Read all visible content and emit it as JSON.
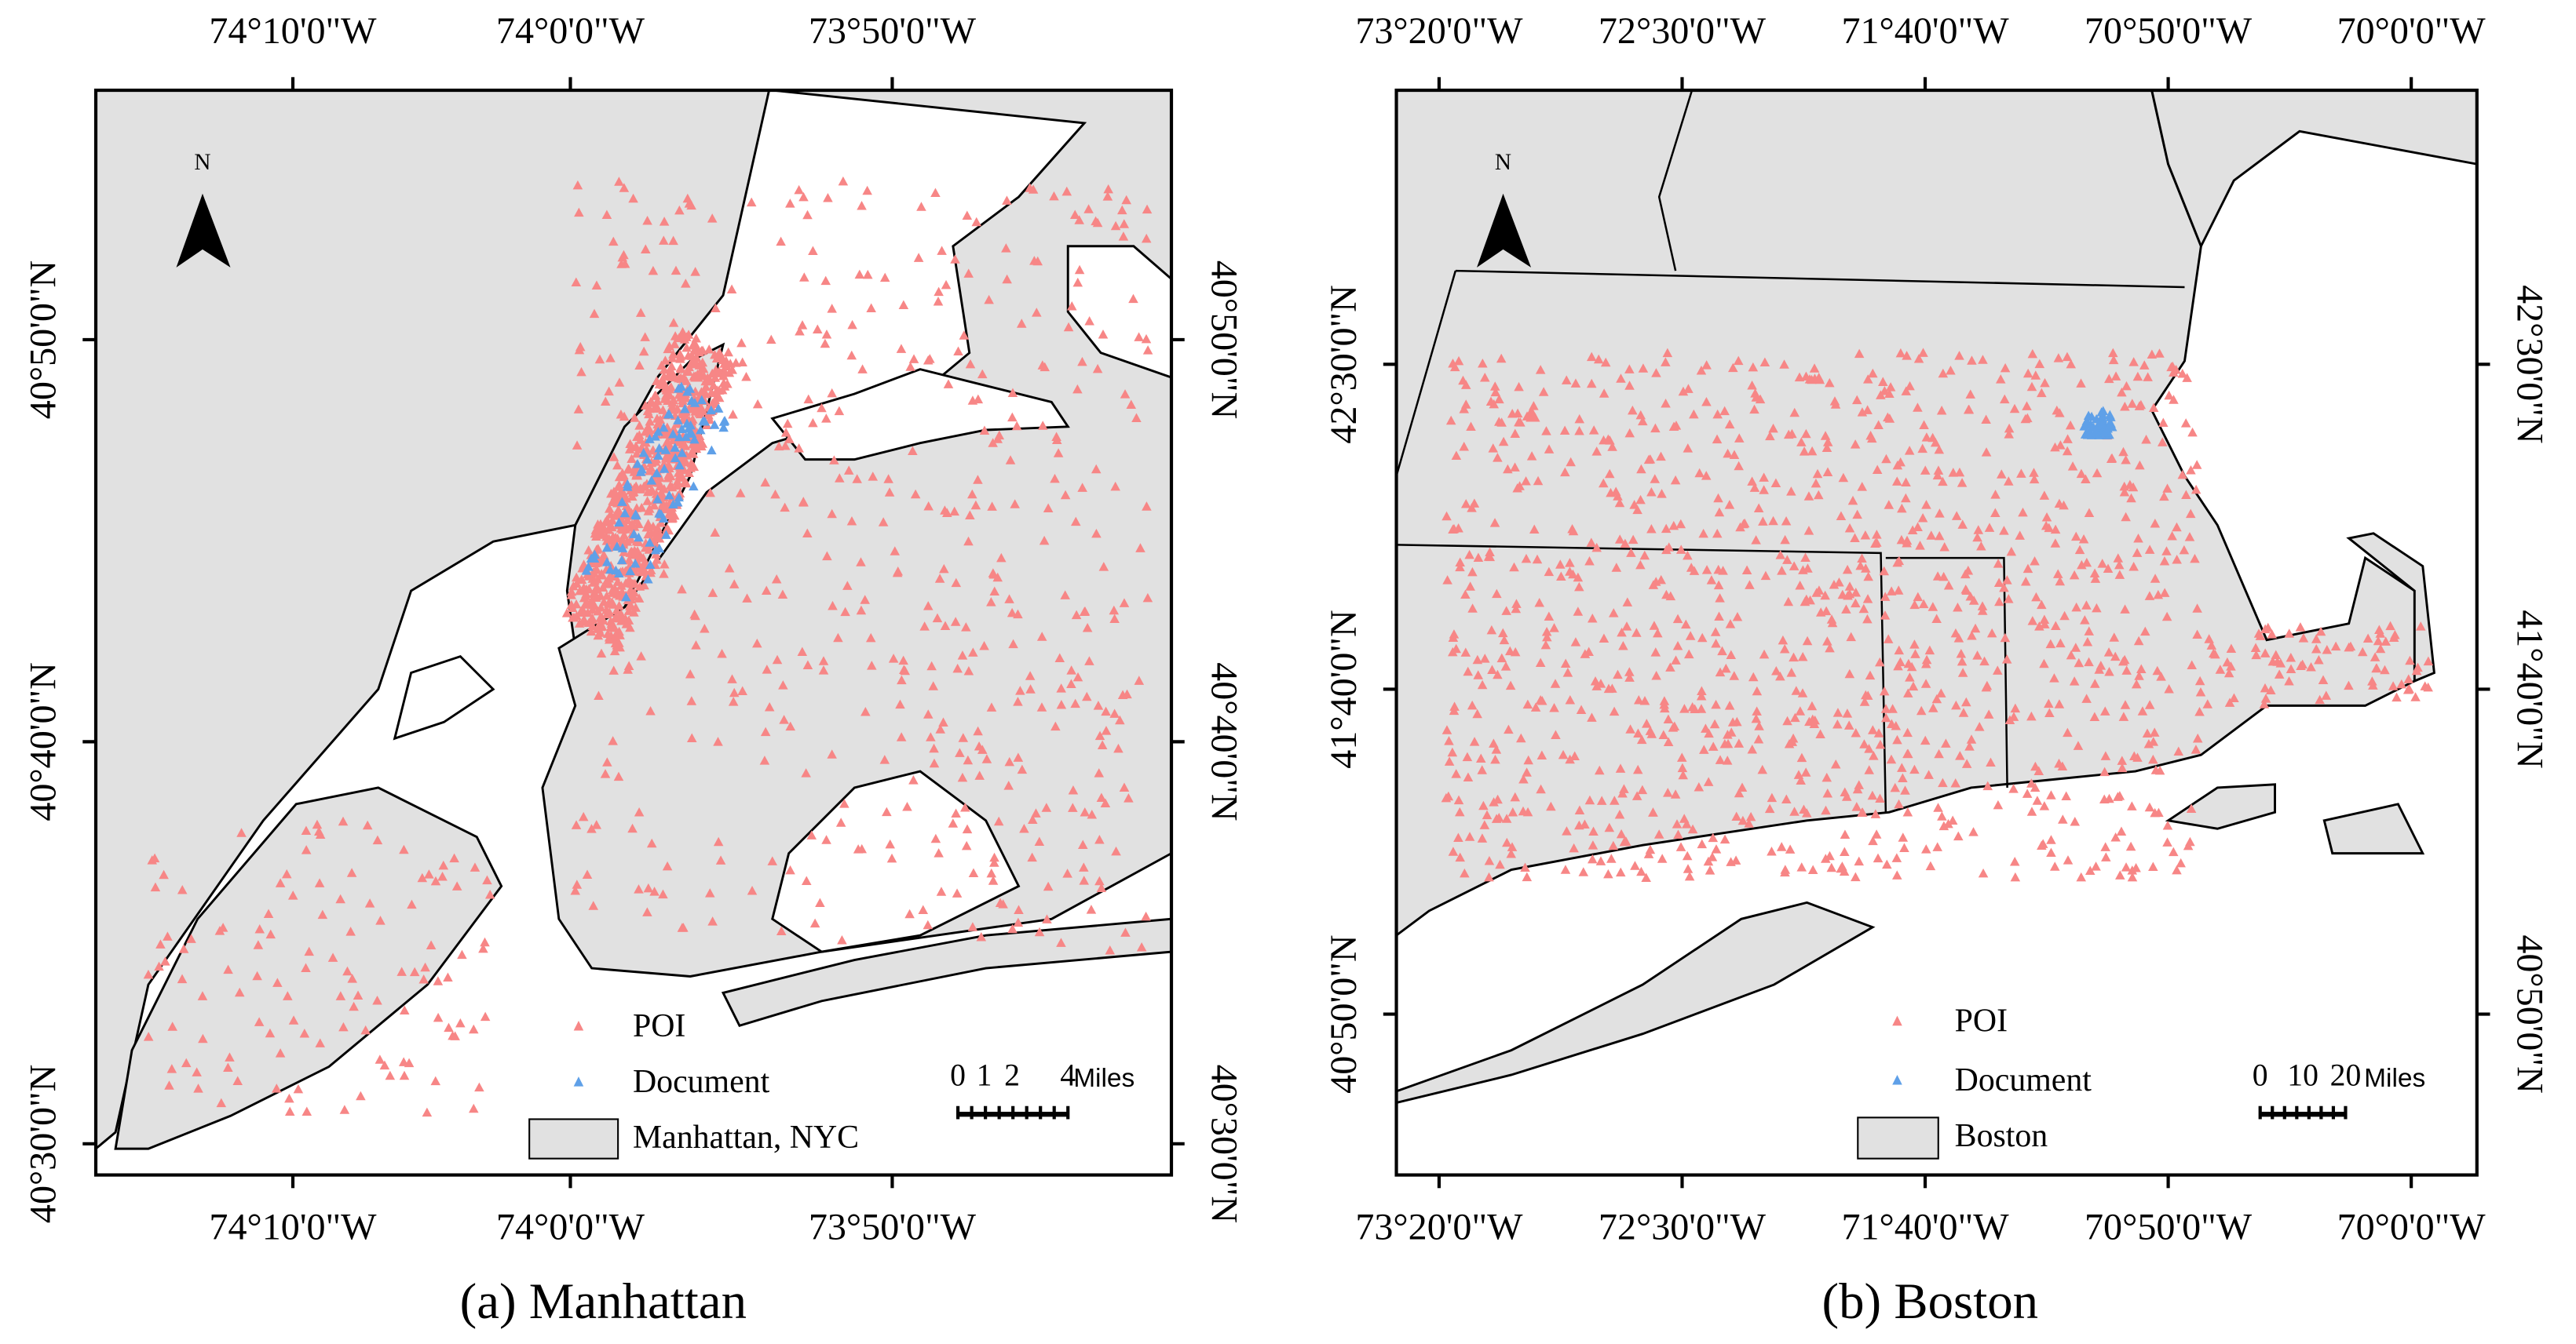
{
  "panels": [
    {
      "caption": "(a) Manhattan",
      "x_ticks": [
        "74°10'0\"W",
        "74°0'0\"W",
        "73°50'0\"W"
      ],
      "y_ticks": [
        "40°50'0\"N",
        "40°40'0\"N",
        "40°30'0\"N"
      ],
      "north": "N",
      "legend": [
        "POI",
        "Document",
        "Manhattan, NYC"
      ],
      "scale_bar": {
        "labels": [
          "0",
          "1",
          "2",
          "4"
        ],
        "unit": "Miles"
      }
    },
    {
      "caption": "(b) Boston",
      "x_ticks": [
        "73°20'0\"W",
        "72°30'0\"W",
        "71°40'0\"W",
        "70°50'0\"W",
        "70°0'0\"W"
      ],
      "y_ticks": [
        "42°30'0\"N",
        "41°40'0\"N",
        "40°50'0\"N"
      ],
      "north": "N",
      "legend": [
        "POI",
        "Document",
        "Boston"
      ],
      "scale_bar": {
        "labels": [
          "0",
          "10",
          "20"
        ],
        "unit": "Miles"
      }
    }
  ]
}
